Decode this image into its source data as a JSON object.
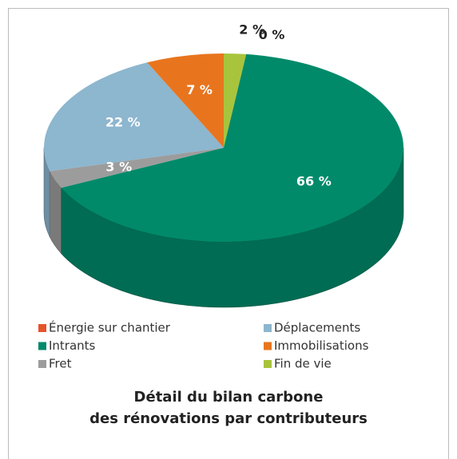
{
  "chart_data": {
    "type": "pie3d",
    "title": [
      "Détail du bilan carbone",
      "des rénovations par contributeurs"
    ],
    "categories": [
      "Fin de vie",
      "Intrants",
      "Fret",
      "Déplacements",
      "Immobilisations",
      "Énergie sur chantier"
    ],
    "values": [
      2,
      66,
      3,
      22,
      7,
      0
    ],
    "value_labels": [
      "2 %",
      "66 %",
      "3 %",
      "22 %",
      "7 %",
      "0 %"
    ],
    "colors": [
      "#a8c43c",
      "#008a6a",
      "#9c9c9c",
      "#8db6cf",
      "#e8751e",
      "#e5542a"
    ],
    "legend": "bottom"
  }
}
